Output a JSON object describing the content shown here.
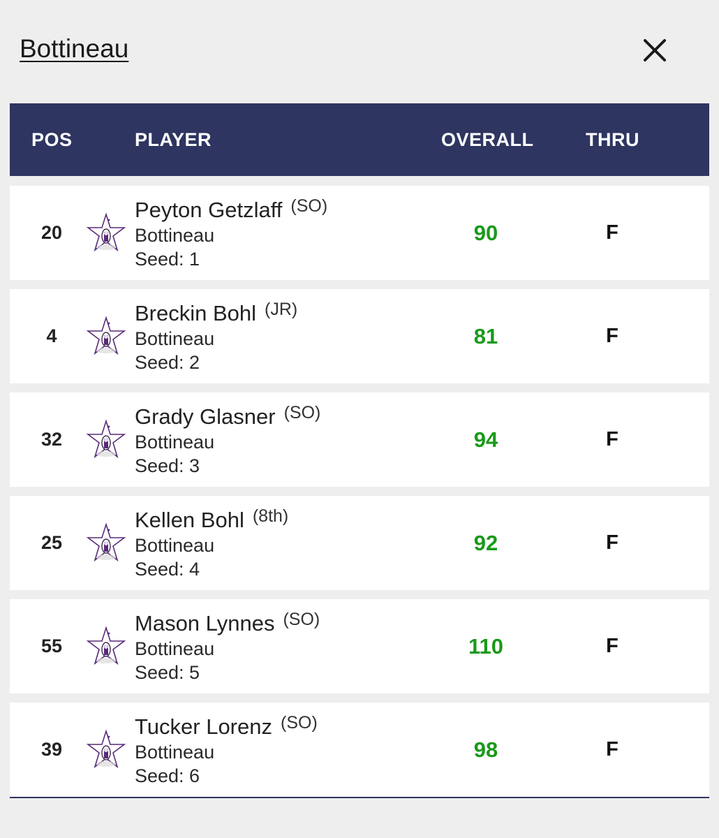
{
  "header": {
    "team_title": "Bottineau",
    "close_icon": "close-icon"
  },
  "table": {
    "columns": {
      "pos": "POS",
      "player": "PLAYER",
      "overall": "OVERALL",
      "thru": "THRU"
    },
    "rows": [
      {
        "pos": "20",
        "name": "Peyton Getzlaff",
        "grade": "(SO)",
        "team": "Bottineau",
        "seed": "Seed: 1",
        "overall": "90",
        "thru": "F"
      },
      {
        "pos": "4",
        "name": "Breckin Bohl",
        "grade": "(JR)",
        "team": "Bottineau",
        "seed": "Seed: 2",
        "overall": "81",
        "thru": "F"
      },
      {
        "pos": "32",
        "name": "Grady Glasner",
        "grade": "(SO)",
        "team": "Bottineau",
        "seed": "Seed: 3",
        "overall": "94",
        "thru": "F"
      },
      {
        "pos": "25",
        "name": "Kellen Bohl",
        "grade": "(8th)",
        "team": "Bottineau",
        "seed": "Seed: 4",
        "overall": "92",
        "thru": "F"
      },
      {
        "pos": "55",
        "name": "Mason Lynnes",
        "grade": "(SO)",
        "team": "Bottineau",
        "seed": "Seed: 5",
        "overall": "110",
        "thru": "F"
      },
      {
        "pos": "39",
        "name": "Tucker Lorenz",
        "grade": "(SO)",
        "team": "Bottineau",
        "seed": "Seed: 6",
        "overall": "98",
        "thru": "F"
      }
    ]
  },
  "colors": {
    "header_bg": "#2e3560",
    "score_green": "#1a9a1a",
    "page_bg": "#eeeeee",
    "logo_purple": "#5a2a7a"
  },
  "icons": {
    "team_logo": "team-logo-star-icon"
  }
}
